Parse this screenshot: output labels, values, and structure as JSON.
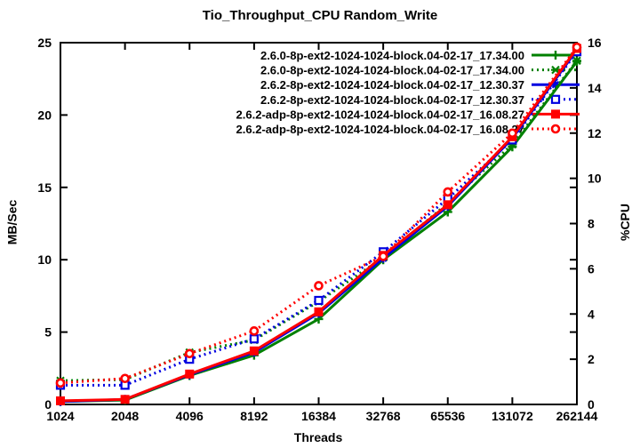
{
  "title": "Tio_Throughput_CPU Random_Write",
  "x_axis_label": "Threads",
  "left_axis_label": "MB/Sec",
  "right_axis_label": "%CPU",
  "colors": {
    "green": "#008000",
    "blue": "#0000e0",
    "red": "#ff0000",
    "axis": "#000000",
    "background": "#ffffff"
  },
  "chart_data": {
    "type": "line",
    "x_scale": "log2",
    "categories": [
      "1024",
      "2048",
      "4096",
      "8192",
      "16384",
      "32768",
      "65536",
      "131072",
      "262144"
    ],
    "left_axis": {
      "label": "MB/Sec",
      "ticks": [
        0,
        5,
        10,
        15,
        20,
        25
      ],
      "range": [
        0,
        25
      ]
    },
    "right_axis": {
      "label": "%CPU",
      "ticks": [
        0,
        2,
        4,
        6,
        8,
        10,
        12,
        14,
        16
      ],
      "range": [
        0,
        16
      ]
    },
    "grid": false,
    "legend_position": "top-right-inside",
    "series": [
      {
        "name": "2.6.0-8p-ext2-1024-1024-block.04-02-17_17.34.00",
        "axis": "left",
        "style": "solid",
        "marker": "plus",
        "color": "#008000",
        "values": [
          0.2,
          0.3,
          2.0,
          3.4,
          5.9,
          10.0,
          13.3,
          17.8,
          23.7
        ]
      },
      {
        "name": "2.6.0-8p-ext2-1024-1024-block.04-02-17_17.34.00",
        "axis": "right",
        "style": "dotted",
        "marker": "xcross",
        "color": "#008000",
        "values": [
          1.05,
          1.1,
          2.3,
          2.85,
          4.55,
          6.5,
          8.9,
          11.5,
          15.2
        ]
      },
      {
        "name": "2.6.2-8p-ext2-1024-1024-block.04-02-17_12.30.37",
        "axis": "left",
        "style": "solid",
        "marker": "star",
        "color": "#0000e0",
        "values": [
          0.2,
          0.35,
          2.05,
          3.6,
          6.3,
          10.1,
          13.7,
          18.4,
          24.5
        ]
      },
      {
        "name": "2.6.2-8p-ext2-1024-1024-block.04-02-17_12.30.37",
        "axis": "right",
        "style": "dotted",
        "marker": "square-open",
        "color": "#0000e0",
        "values": [
          0.85,
          0.85,
          2.0,
          2.9,
          4.6,
          6.75,
          9.1,
          11.7,
          15.6
        ]
      },
      {
        "name": "2.6.2-adp-8p-ext2-1024-1024-block.04-02-17_16.08.27",
        "axis": "left",
        "style": "solid",
        "marker": "square-filled",
        "color": "#ff0000",
        "values": [
          0.25,
          0.35,
          2.1,
          3.7,
          6.4,
          10.3,
          13.8,
          18.5,
          24.6
        ]
      },
      {
        "name": "2.6.2-adp-8p-ext2-1024-1024-block.04-02-17_16.08.27",
        "axis": "right",
        "style": "dotted",
        "marker": "circle-open",
        "color": "#ff0000",
        "values": [
          0.95,
          1.15,
          2.25,
          3.25,
          5.25,
          6.55,
          9.4,
          12.0,
          15.8
        ]
      }
    ]
  }
}
